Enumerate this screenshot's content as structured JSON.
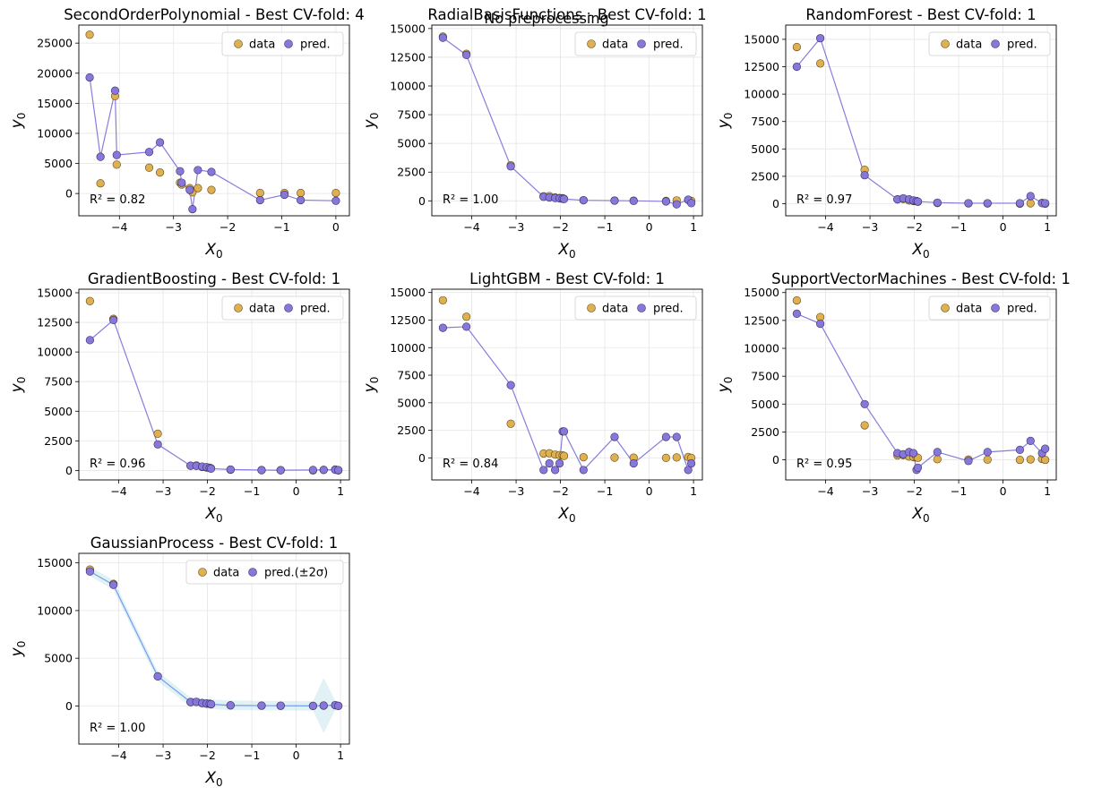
{
  "suptitle": "No preprocessing",
  "legend_labels": {
    "data": "data",
    "pred": "pred."
  },
  "colors": {
    "data": "#e0b050",
    "pred": "#8777d9",
    "line": "#7b6fd9",
    "band": "#add8e6",
    "band_line": "#6495ed",
    "grid": "#e6e6e6"
  },
  "chart_data": [
    {
      "type": "line",
      "title": "SecondOrderPolynomial - Best CV-fold: 4",
      "xlabel": "X0",
      "ylabel": "y0",
      "xlim": [
        -4.75,
        0.25
      ],
      "ylim": [
        -3700,
        28000
      ],
      "xticks": [
        -4,
        -3,
        -2,
        -1,
        0
      ],
      "yticks": [
        0,
        5000,
        10000,
        15000,
        20000,
        25000
      ],
      "legend": "top-right",
      "grid": true,
      "r2": "R² = 0.82",
      "series": [
        {
          "name": "data",
          "x": [
            -4.55,
            -4.35,
            -4.08,
            -4.05,
            -3.45,
            -3.25,
            -2.88,
            -2.85,
            -2.7,
            -2.65,
            -2.55,
            -2.3,
            -1.4,
            -0.95,
            -0.65,
            0.0
          ],
          "y": [
            26400,
            1700,
            16200,
            4800,
            4300,
            3500,
            1800,
            1500,
            900,
            200,
            900,
            600,
            100,
            100,
            100,
            100
          ]
        },
        {
          "name": "pred.",
          "x": [
            -4.55,
            -4.35,
            -4.08,
            -4.05,
            -3.45,
            -3.25,
            -2.88,
            -2.85,
            -2.7,
            -2.65,
            -2.55,
            -2.3,
            -1.4,
            -0.95,
            -0.65,
            0.0
          ],
          "y": [
            19300,
            6100,
            17100,
            6400,
            6900,
            8500,
            3700,
            1800,
            600,
            -2600,
            3900,
            3600,
            -1100,
            -200,
            -1100,
            -1200
          ]
        }
      ]
    },
    {
      "type": "line",
      "title": "RadialBasisFunctions - Best CV-fold: 1",
      "xlabel": "X0",
      "ylabel": "y0",
      "xlim": [
        -4.9,
        1.2
      ],
      "ylim": [
        -1300,
        15300
      ],
      "xticks": [
        -4,
        -3,
        -2,
        -1,
        0,
        1
      ],
      "yticks": [
        0,
        2500,
        5000,
        7500,
        10000,
        12500,
        15000
      ],
      "legend": "top-right",
      "grid": true,
      "r2": "R² = 1.00",
      "series": [
        {
          "name": "data",
          "x": [
            -4.65,
            -4.12,
            -3.12,
            -2.38,
            -2.25,
            -2.12,
            -2.02,
            -1.95,
            -1.92,
            -1.48,
            -0.78,
            -0.35,
            0.38,
            0.62,
            0.88,
            0.95
          ],
          "y": [
            14300,
            12800,
            3100,
            400,
            420,
            300,
            250,
            230,
            180,
            60,
            30,
            20,
            0,
            40,
            80,
            0
          ]
        },
        {
          "name": "pred.",
          "x": [
            -4.65,
            -4.12,
            -3.12,
            -2.38,
            -2.25,
            -2.12,
            -2.02,
            -1.95,
            -1.92,
            -1.48,
            -0.78,
            -0.35,
            0.38,
            0.62,
            0.88,
            0.95
          ],
          "y": [
            14200,
            12700,
            3000,
            350,
            300,
            250,
            220,
            180,
            160,
            50,
            20,
            0,
            -50,
            -300,
            100,
            -200
          ]
        }
      ]
    },
    {
      "type": "line",
      "title": "RandomForest - Best CV-fold: 1",
      "xlabel": "X0",
      "ylabel": "y0",
      "xlim": [
        -4.9,
        1.2
      ],
      "ylim": [
        -1100,
        16300
      ],
      "xticks": [
        -4,
        -3,
        -2,
        -1,
        0,
        1
      ],
      "yticks": [
        0,
        2500,
        5000,
        7500,
        10000,
        12500,
        15000
      ],
      "legend": "top-right",
      "grid": true,
      "r2": "R² = 0.97",
      "series": [
        {
          "name": "data",
          "x": [
            -4.65,
            -4.12,
            -3.12,
            -2.38,
            -2.25,
            -2.12,
            -2.02,
            -1.95,
            -1.92,
            -1.48,
            -0.78,
            -0.35,
            0.38,
            0.62,
            0.88,
            0.95
          ],
          "y": [
            14300,
            12800,
            3100,
            400,
            420,
            300,
            250,
            230,
            180,
            60,
            30,
            20,
            0,
            40,
            80,
            0
          ]
        },
        {
          "name": "pred.",
          "x": [
            -4.65,
            -4.12,
            -3.12,
            -2.38,
            -2.25,
            -2.12,
            -2.02,
            -1.95,
            -1.92,
            -1.48,
            -0.78,
            -0.35,
            0.38,
            0.62,
            0.88,
            0.95
          ],
          "y": [
            12500,
            15100,
            2600,
            400,
            500,
            400,
            300,
            250,
            200,
            100,
            50,
            50,
            50,
            700,
            50,
            50
          ]
        }
      ]
    },
    {
      "type": "line",
      "title": "GradientBoosting - Best CV-fold: 1",
      "xlabel": "X0",
      "ylabel": "y0",
      "xlim": [
        -4.9,
        1.2
      ],
      "ylim": [
        -800,
        15300
      ],
      "xticks": [
        -4,
        -3,
        -2,
        -1,
        0,
        1
      ],
      "yticks": [
        0,
        2500,
        5000,
        7500,
        10000,
        12500,
        15000
      ],
      "legend": "top-right",
      "grid": true,
      "r2": "R² = 0.96",
      "series": [
        {
          "name": "data",
          "x": [
            -4.65,
            -4.12,
            -3.12,
            -2.38,
            -2.25,
            -2.12,
            -2.02,
            -1.95,
            -1.92,
            -1.48,
            -0.78,
            -0.35,
            0.38,
            0.62,
            0.88,
            0.95
          ],
          "y": [
            14300,
            12800,
            3100,
            400,
            420,
            300,
            250,
            230,
            180,
            60,
            30,
            20,
            0,
            40,
            80,
            0
          ]
        },
        {
          "name": "pred.",
          "x": [
            -4.65,
            -4.12,
            -3.12,
            -2.38,
            -2.25,
            -2.12,
            -2.02,
            -1.95,
            -1.92,
            -1.48,
            -0.78,
            -0.35,
            0.38,
            0.62,
            0.88,
            0.95
          ],
          "y": [
            11000,
            12700,
            2200,
            400,
            380,
            330,
            280,
            200,
            150,
            80,
            30,
            20,
            40,
            50,
            60,
            30
          ]
        }
      ]
    },
    {
      "type": "line",
      "title": "LightGBM - Best CV-fold: 1",
      "xlabel": "X0",
      "ylabel": "y0",
      "xlim": [
        -4.9,
        1.2
      ],
      "ylim": [
        -2000,
        15300
      ],
      "xticks": [
        -4,
        -3,
        -2,
        -1,
        0,
        1
      ],
      "yticks": [
        0,
        2500,
        5000,
        7500,
        10000,
        12500,
        15000
      ],
      "legend": "top-right",
      "grid": true,
      "r2": "R² = 0.84",
      "series": [
        {
          "name": "data",
          "x": [
            -4.65,
            -4.12,
            -3.12,
            -2.38,
            -2.25,
            -2.12,
            -2.02,
            -1.95,
            -1.92,
            -1.48,
            -0.78,
            -0.35,
            0.38,
            0.62,
            0.88,
            0.95
          ],
          "y": [
            14300,
            12800,
            3100,
            400,
            420,
            300,
            250,
            230,
            180,
            60,
            30,
            20,
            0,
            40,
            80,
            0
          ]
        },
        {
          "name": "pred.",
          "x": [
            -4.65,
            -4.12,
            -3.12,
            -2.38,
            -2.25,
            -2.12,
            -2.02,
            -1.95,
            -1.92,
            -1.48,
            -0.78,
            -0.35,
            0.38,
            0.62,
            0.88,
            0.95
          ],
          "y": [
            11800,
            11900,
            6600,
            -1100,
            -500,
            -1100,
            -500,
            2400,
            2400,
            -1100,
            1900,
            -500,
            1900,
            1900,
            -1100,
            -500
          ]
        }
      ]
    },
    {
      "type": "line",
      "title": "SupportVectorMachines - Best CV-fold: 1",
      "xlabel": "X0",
      "ylabel": "y0",
      "xlim": [
        -4.9,
        1.2
      ],
      "ylim": [
        -1800,
        15300
      ],
      "xticks": [
        -4,
        -3,
        -2,
        -1,
        0,
        1
      ],
      "yticks": [
        0,
        2500,
        5000,
        7500,
        10000,
        12500,
        15000
      ],
      "legend": "top-right",
      "grid": true,
      "r2": "R² = 0.95",
      "series": [
        {
          "name": "data",
          "x": [
            -4.65,
            -4.12,
            -3.12,
            -2.38,
            -2.25,
            -2.12,
            -2.02,
            -1.95,
            -1.92,
            -1.48,
            -0.78,
            -0.35,
            0.38,
            0.62,
            0.88,
            0.95
          ],
          "y": [
            14300,
            12800,
            3100,
            400,
            420,
            300,
            250,
            230,
            180,
            60,
            30,
            20,
            0,
            40,
            80,
            0
          ]
        },
        {
          "name": "pred.",
          "x": [
            -4.65,
            -4.12,
            -3.12,
            -2.38,
            -2.25,
            -2.12,
            -2.02,
            -1.95,
            -1.92,
            -1.48,
            -0.78,
            -0.35,
            0.38,
            0.62,
            0.88,
            0.95
          ],
          "y": [
            13100,
            12200,
            5000,
            600,
            500,
            700,
            600,
            -900,
            -700,
            700,
            -100,
            700,
            900,
            1700,
            600,
            1000
          ]
        }
      ]
    },
    {
      "type": "line",
      "title": "GaussianProcess - Best CV-fold: 1",
      "xlabel": "X0",
      "ylabel": "y0",
      "xlim": [
        -4.9,
        1.2
      ],
      "ylim": [
        -4000,
        16000
      ],
      "xticks": [
        -4,
        -3,
        -2,
        -1,
        0,
        1
      ],
      "yticks": [
        0,
        5000,
        10000,
        15000
      ],
      "legend": "top-right",
      "grid": true,
      "r2": "R² = 1.00",
      "pred_label": "pred.(±2σ)",
      "series": [
        {
          "name": "data",
          "x": [
            -4.65,
            -4.12,
            -3.12,
            -2.38,
            -2.25,
            -2.12,
            -2.02,
            -1.95,
            -1.92,
            -1.48,
            -0.78,
            -0.35,
            0.38,
            0.62,
            0.88,
            0.95
          ],
          "y": [
            14300,
            12800,
            3100,
            400,
            420,
            300,
            250,
            230,
            180,
            60,
            30,
            20,
            0,
            40,
            80,
            0
          ]
        },
        {
          "name": "pred.(±2σ)",
          "x": [
            -4.65,
            -4.12,
            -3.12,
            -2.38,
            -2.25,
            -2.12,
            -2.02,
            -1.95,
            -1.92,
            -1.48,
            -0.78,
            -0.35,
            0.38,
            0.62,
            0.88,
            0.95
          ],
          "y": [
            14100,
            12700,
            3100,
            400,
            420,
            300,
            250,
            230,
            180,
            60,
            30,
            20,
            0,
            40,
            80,
            0
          ],
          "sigma2": [
            500,
            500,
            500,
            500,
            500,
            500,
            500,
            500,
            500,
            500,
            500,
            500,
            500,
            2900,
            500,
            500
          ]
        }
      ]
    }
  ]
}
